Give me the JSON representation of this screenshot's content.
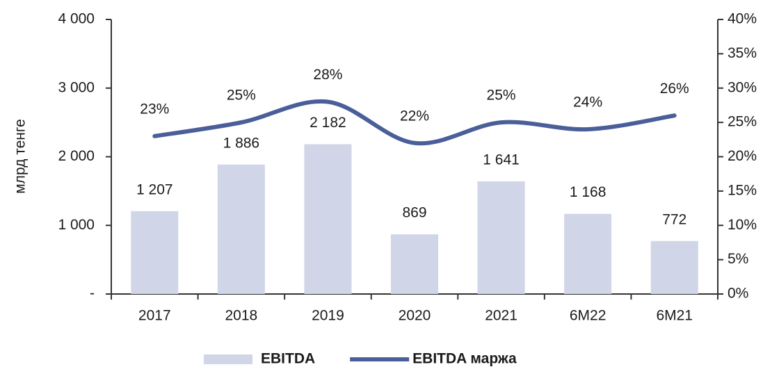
{
  "chart_data": {
    "type": "bar",
    "y_label": "млрд тенге",
    "categories": [
      "2017",
      "2018",
      "2019",
      "2020",
      "2021",
      "6M22",
      "6M21"
    ],
    "series": [
      {
        "name": "EBITDA",
        "type": "bar",
        "color": "#d0d5e8",
        "values": [
          1207,
          1886,
          2182,
          869,
          1641,
          1168,
          772
        ],
        "value_labels": [
          "1 207",
          "1 886",
          "2 182",
          "869",
          "1 641",
          "1 168",
          "772"
        ]
      },
      {
        "name": "EBITDA маржа",
        "type": "line",
        "axis": "y2",
        "color": "#4a5e99",
        "values": [
          23,
          25,
          28,
          22,
          25,
          24,
          26
        ],
        "value_labels": [
          "23%",
          "25%",
          "28%",
          "22%",
          "25%",
          "24%",
          "26%"
        ]
      }
    ],
    "ylim": [
      0,
      4000
    ],
    "yticks": [
      {
        "value": 0,
        "label": "-"
      },
      {
        "value": 1000,
        "label": "1 000"
      },
      {
        "value": 2000,
        "label": "2 000"
      },
      {
        "value": 3000,
        "label": "3 000"
      },
      {
        "value": 4000,
        "label": "4 000"
      }
    ],
    "y2lim": [
      0,
      40
    ],
    "y2ticks": [
      {
        "value": 0,
        "label": "0%"
      },
      {
        "value": 5,
        "label": "5%"
      },
      {
        "value": 10,
        "label": "10%"
      },
      {
        "value": 15,
        "label": "15%"
      },
      {
        "value": 20,
        "label": "20%"
      },
      {
        "value": 25,
        "label": "25%"
      },
      {
        "value": 30,
        "label": "30%"
      },
      {
        "value": 35,
        "label": "35%"
      },
      {
        "value": 40,
        "label": "40%"
      }
    ],
    "legend": "bottom"
  }
}
